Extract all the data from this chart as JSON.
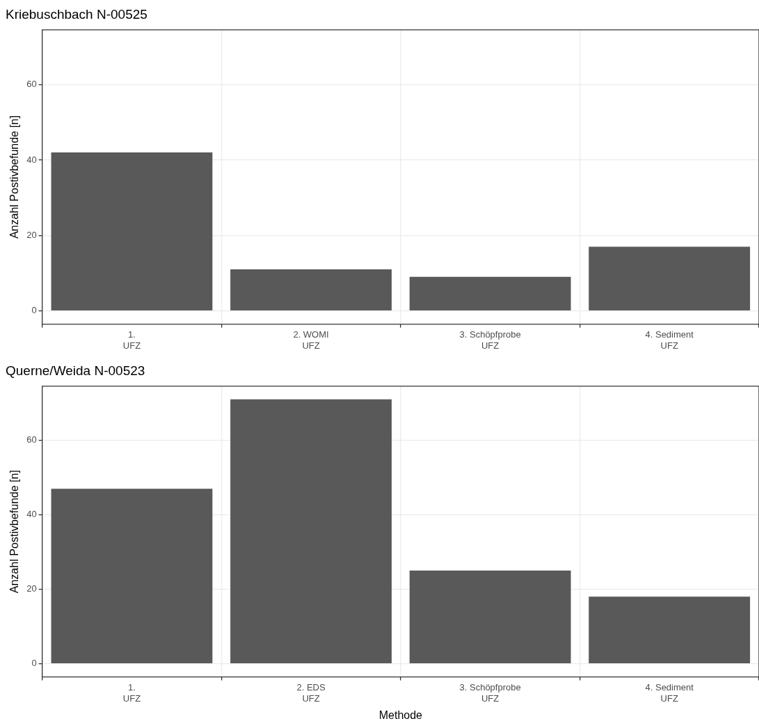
{
  "chart_data": [
    {
      "type": "bar",
      "title": "Kriebuschbach N-00525",
      "ylabel": "Anzahl Postivbefunde [n]",
      "categories": [
        "1.\nUFZ",
        "2. WOMI\nUFZ",
        "3. Schöpfprobe\nUFZ",
        "4. Sediment\nUFZ"
      ],
      "values": [
        42,
        11,
        9,
        17
      ],
      "color": "#595959",
      "ylim": [
        -3.55,
        74.55
      ],
      "yticks": [
        0,
        20,
        40,
        60
      ],
      "grid": true,
      "legend": false
    },
    {
      "type": "bar",
      "title": "Querne/Weida N-00523",
      "xlabel": "Methode",
      "ylabel": "Anzahl Postivbefunde [n]",
      "categories": [
        "1.\nUFZ",
        "2. EDS\nUFZ",
        "3. Schöpfprobe\nUFZ",
        "4. Sediment\nUFZ"
      ],
      "values": [
        47,
        71,
        25,
        18
      ],
      "color": "#595959",
      "ylim": [
        -3.55,
        74.55
      ],
      "yticks": [
        0,
        20,
        40,
        60
      ],
      "grid": true,
      "legend": false
    }
  ]
}
